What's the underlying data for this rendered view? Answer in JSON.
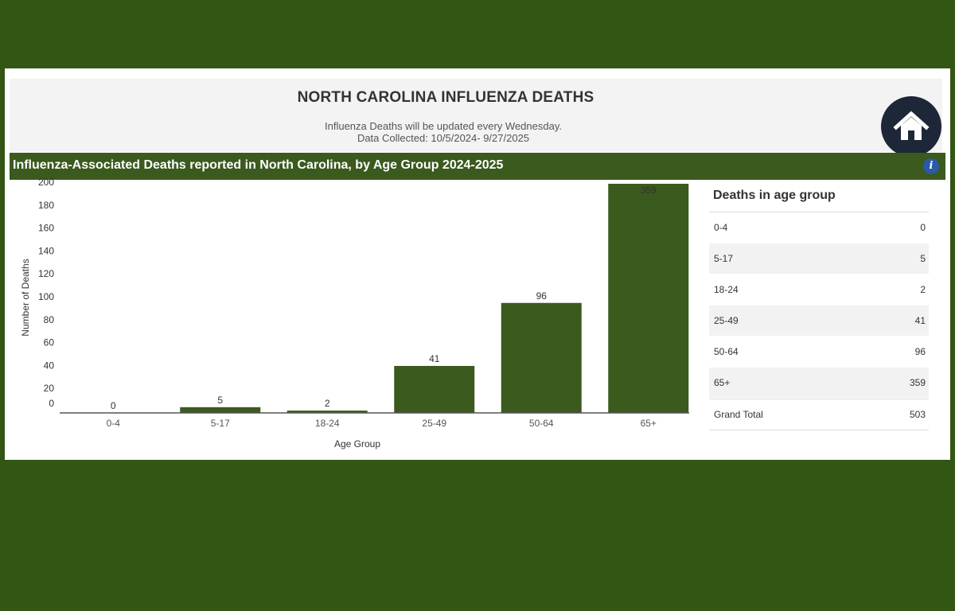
{
  "header": {
    "title": "NORTH CAROLINA INFLUENZA DEATHS",
    "update_note": "Influenza Deaths will be updated every Wednesday.",
    "collected_note": "Data Collected:  10/5/2024- 9/27/2025"
  },
  "section": {
    "title": "Influenza-Associated Deaths reported in North Carolina, by Age Group 2024-2025",
    "info_label": "i"
  },
  "icons": {
    "home": "home-icon",
    "info": "info-icon"
  },
  "colors": {
    "background": "#335614",
    "bar": "#3a5a1e",
    "home_button": "#1d2738",
    "info_button": "#2c5aa8"
  },
  "chart_data": {
    "type": "bar",
    "categories": [
      "0-4",
      "5-17",
      "18-24",
      "25-49",
      "50-64",
      "65+"
    ],
    "values": [
      0,
      5,
      2,
      41,
      96,
      359
    ],
    "data_labels": [
      "0",
      "5",
      "2",
      "41",
      "96",
      "359"
    ],
    "xlabel": "Age Group",
    "ylabel": "Number of Deaths",
    "ylim": [
      0,
      200
    ],
    "yticks": [
      0,
      20,
      40,
      60,
      80,
      100,
      120,
      140,
      160,
      180,
      200
    ],
    "grid": false,
    "legend": "none"
  },
  "table": {
    "title": "Deaths in age group",
    "rows": [
      {
        "label": "0-4",
        "value": "0"
      },
      {
        "label": "5-17",
        "value": "5"
      },
      {
        "label": "18-24",
        "value": "2"
      },
      {
        "label": "25-49",
        "value": "41"
      },
      {
        "label": "50-64",
        "value": "96"
      },
      {
        "label": "65+",
        "value": "359"
      }
    ],
    "total": {
      "label": "Grand Total",
      "value": "503"
    }
  }
}
